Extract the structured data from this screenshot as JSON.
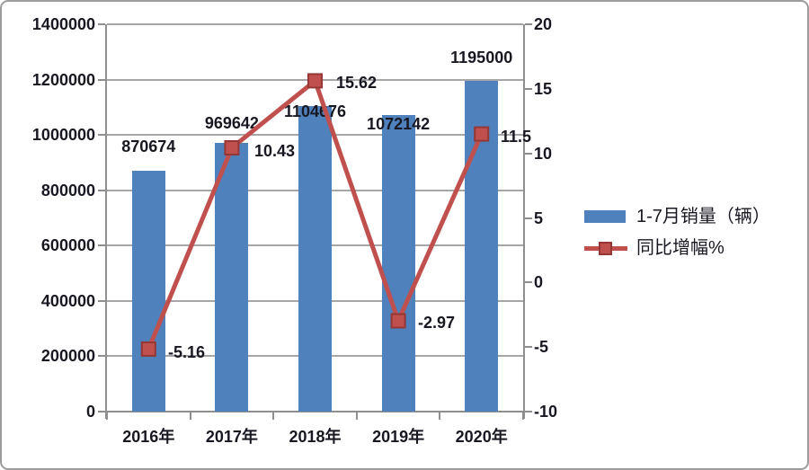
{
  "chart_data": {
    "type": "combo",
    "title": "",
    "categories": [
      "2016年",
      "2017年",
      "2018年",
      "2019年",
      "2020年"
    ],
    "series": [
      {
        "name": "1-7月销量（辆）",
        "chart_type": "bar",
        "axis": "left",
        "values": [
          870674,
          969642,
          1104676,
          1072142,
          1195000
        ],
        "data_labels": [
          "870674",
          "969642",
          "1104676",
          "1072142",
          "1195000"
        ],
        "color": "#4f81bd"
      },
      {
        "name": "同比增幅%",
        "chart_type": "line",
        "axis": "right",
        "values": [
          -5.16,
          10.43,
          15.62,
          -2.97,
          11.5
        ],
        "data_labels": [
          "-5.16",
          "10.43",
          "15.62",
          "-2.97",
          "11.5"
        ],
        "color": "#c0504d",
        "marker": "square",
        "marker_border_color": "#953735"
      }
    ],
    "left_axis": {
      "min": 0,
      "max": 1400000,
      "step": 200000,
      "tick_labels": [
        "1400000",
        "1200000",
        "1000000",
        "800000",
        "600000",
        "400000",
        "200000",
        "0"
      ]
    },
    "right_axis": {
      "min": -10,
      "max": 20,
      "step": 5,
      "tick_labels": [
        "20",
        "15",
        "10",
        "5",
        "0",
        "-5",
        "-10"
      ]
    },
    "grid": "horizontal",
    "legend_position": "right",
    "styles": {
      "grid_color": "#a6a6a6",
      "axis_color": "#8f8f8f",
      "text_color": "#181822",
      "frame_border_color": "#9c9c9c",
      "background": "#ffffff"
    }
  }
}
